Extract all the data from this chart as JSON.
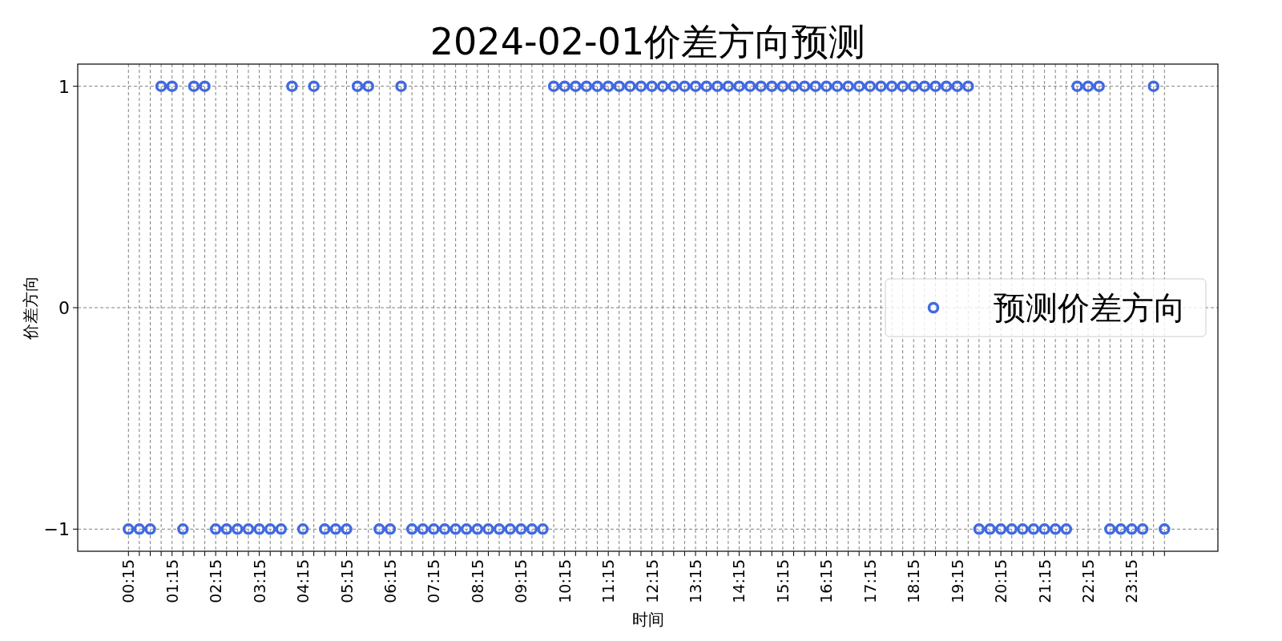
{
  "chart_data": {
    "type": "scatter",
    "title": "2024-02-01价差方向预测",
    "xlabel": "时间",
    "ylabel": "价差方向",
    "categories": [
      "00:15",
      null,
      null,
      null,
      "01:15",
      null,
      null,
      null,
      "02:15",
      null,
      null,
      null,
      "03:15",
      null,
      null,
      null,
      "04:15",
      null,
      null,
      null,
      "05:15",
      null,
      null,
      null,
      "06:15",
      null,
      null,
      null,
      "07:15",
      null,
      null,
      null,
      "08:15",
      null,
      null,
      null,
      "09:15",
      null,
      null,
      null,
      "10:15",
      null,
      null,
      null,
      "11:15",
      null,
      null,
      null,
      "12:15",
      null,
      null,
      null,
      "13:15",
      null,
      null,
      null,
      "14:15",
      null,
      null,
      null,
      "15:15",
      null,
      null,
      null,
      "16:15",
      null,
      null,
      null,
      "17:15",
      null,
      null,
      null,
      "18:15",
      null,
      null,
      null,
      "19:15",
      null,
      null,
      null,
      "20:15",
      null,
      null,
      null,
      "21:15",
      null,
      null,
      null,
      "22:15",
      null,
      null,
      null,
      "23:15",
      null,
      null,
      null
    ],
    "series": [
      {
        "name": "预测价差方向",
        "color": "#4169e1",
        "values": [
          -1,
          -1,
          -1,
          1,
          1,
          -1,
          1,
          1,
          -1,
          -1,
          -1,
          -1,
          -1,
          -1,
          -1,
          1,
          -1,
          1,
          -1,
          -1,
          -1,
          1,
          1,
          -1,
          -1,
          1,
          -1,
          -1,
          -1,
          -1,
          -1,
          -1,
          -1,
          -1,
          -1,
          -1,
          -1,
          -1,
          -1,
          1,
          1,
          1,
          1,
          1,
          1,
          1,
          1,
          1,
          1,
          1,
          1,
          1,
          1,
          1,
          1,
          1,
          1,
          1,
          1,
          1,
          1,
          1,
          1,
          1,
          1,
          1,
          1,
          1,
          1,
          1,
          1,
          1,
          1,
          1,
          1,
          1,
          1,
          1,
          -1,
          -1,
          -1,
          -1,
          -1,
          -1,
          -1,
          -1,
          -1,
          1,
          1,
          1,
          -1,
          -1,
          -1,
          -1,
          1,
          -1
        ]
      }
    ],
    "ylim": [
      -1.1,
      1.1
    ],
    "yticks": [
      {
        "value": -1,
        "label": "−1"
      },
      0,
      1
    ],
    "grid": true,
    "legend": "right",
    "marker": "circle"
  }
}
